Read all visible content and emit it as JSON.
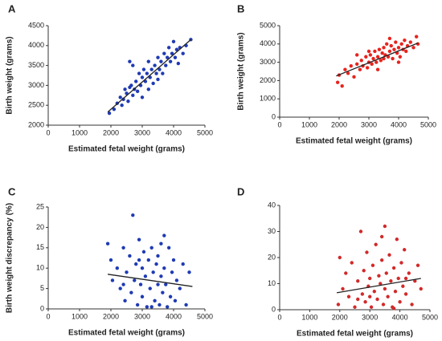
{
  "chart_data": [
    {
      "type": "scatter",
      "label": "A",
      "xlabel": "Estimated fetal weight (grams)",
      "ylabel": "Birth weight (grams)",
      "color": "#1f3bb3",
      "xlim": [
        0,
        5000
      ],
      "xticks": [
        0,
        1000,
        2000,
        3000,
        4000,
        5000
      ],
      "ylim": [
        2000,
        4500
      ],
      "yticks": [
        2000,
        2500,
        3000,
        3500,
        4000,
        4500
      ],
      "x": [
        1950,
        2100,
        2200,
        2300,
        2350,
        2400,
        2450,
        2500,
        2550,
        2600,
        2650,
        2700,
        2700,
        2750,
        2800,
        2850,
        2900,
        2950,
        3000,
        3000,
        3050,
        3100,
        3150,
        3200,
        3200,
        3250,
        3300,
        3350,
        3400,
        3450,
        3500,
        3500,
        3550,
        3600,
        3650,
        3700,
        3750,
        3800,
        3850,
        3900,
        3950,
        4000,
        4050,
        4100,
        4150,
        4200,
        4300,
        4400,
        4550,
        2600
      ],
      "y": [
        2300,
        2400,
        2550,
        2700,
        2500,
        2650,
        2900,
        2800,
        2600,
        2950,
        3000,
        2750,
        3500,
        2900,
        3100,
        2850,
        3300,
        3000,
        3200,
        2700,
        3400,
        3100,
        3300,
        2900,
        3600,
        3200,
        3400,
        3050,
        3500,
        3300,
        3700,
        3150,
        3400,
        3600,
        3300,
        3800,
        3500,
        3700,
        3950,
        3600,
        3800,
        4100,
        3700,
        3900,
        3550,
        3950,
        3800,
        4000,
        4150,
        3600
      ],
      "trend": {
        "x": [
          1900,
          4550
        ],
        "y": [
          2330,
          4150
        ]
      }
    },
    {
      "type": "scatter",
      "label": "B",
      "xlabel": "Estimated fetal weight (grams)",
      "ylabel": "Birth weight (grams)",
      "color": "#e8231e",
      "xlim": [
        0,
        5000
      ],
      "xticks": [
        0,
        1000,
        2000,
        3000,
        4000,
        5000
      ],
      "ylim": [
        0,
        5000
      ],
      "yticks": [
        0,
        1000,
        2000,
        3000,
        4000,
        5000
      ],
      "x": [
        1950,
        2000,
        2100,
        2200,
        2300,
        2400,
        2500,
        2600,
        2700,
        2750,
        2800,
        2900,
        2950,
        3000,
        3050,
        3100,
        3150,
        3200,
        3250,
        3300,
        3350,
        3400,
        3450,
        3500,
        3500,
        3550,
        3600,
        3650,
        3700,
        3750,
        3800,
        3850,
        3900,
        3950,
        4000,
        4050,
        4100,
        4150,
        4200,
        4250,
        4300,
        4400,
        4500,
        4600,
        4650,
        3300,
        2600,
        3700,
        3000,
        4000
      ],
      "y": [
        1900,
        2300,
        1700,
        2600,
        2400,
        2800,
        2200,
        2900,
        2600,
        3100,
        2800,
        3300,
        2700,
        3000,
        3400,
        2900,
        3200,
        3600,
        3000,
        3300,
        3700,
        3100,
        3500,
        3800,
        3200,
        3400,
        4000,
        3300,
        3600,
        3900,
        3200,
        3700,
        4100,
        3500,
        3800,
        3300,
        4000,
        3700,
        4200,
        3600,
        3900,
        4100,
        3800,
        4400,
        4000,
        2600,
        3400,
        4300,
        3600,
        3000
      ],
      "trend": {
        "x": [
          1900,
          4650
        ],
        "y": [
          2250,
          4050
        ]
      }
    },
    {
      "type": "scatter",
      "label": "C",
      "xlabel": "Estimated fetal weight (grams)",
      "ylabel": "Birth weight discrepancy (%)",
      "color": "#1f3bb3",
      "xlim": [
        0,
        5000
      ],
      "xticks": [
        0,
        1000,
        2000,
        3000,
        4000,
        5000
      ],
      "ylim": [
        0,
        25
      ],
      "yticks": [
        0,
        5,
        10,
        15,
        20,
        25
      ],
      "x": [
        1900,
        2000,
        2050,
        2200,
        2300,
        2400,
        2450,
        2500,
        2600,
        2650,
        2700,
        2750,
        2800,
        2850,
        2900,
        2950,
        3000,
        3000,
        3050,
        3100,
        3150,
        3200,
        3250,
        3300,
        3350,
        3400,
        3450,
        3500,
        3500,
        3550,
        3600,
        3650,
        3700,
        3700,
        3750,
        3800,
        3850,
        3900,
        3950,
        4000,
        4050,
        4100,
        4200,
        4300,
        4400,
        4500,
        2400,
        3300,
        2900,
        3600
      ],
      "y": [
        16,
        12,
        7,
        10,
        5,
        15,
        2,
        9,
        13,
        4,
        23,
        7,
        11,
        1,
        17,
        6,
        10,
        3,
        14,
        8,
        0.5,
        12,
        5,
        15,
        9,
        2,
        11,
        6,
        13,
        1,
        8,
        4,
        18,
        10,
        6,
        0.5,
        15,
        3,
        9,
        12,
        2,
        7,
        5,
        11,
        1,
        9,
        6,
        0.5,
        12,
        16
      ],
      "trend": {
        "x": [
          1900,
          4600
        ],
        "y": [
          8.5,
          5.5
        ]
      }
    },
    {
      "type": "scatter",
      "label": "D",
      "xlabel": "Estimated fetal weight (grams)",
      "color": "#d12a2a",
      "xlim": [
        0,
        5000
      ],
      "xticks": [
        0,
        1000,
        2000,
        3000,
        4000,
        5000
      ],
      "ylim": [
        0,
        40
      ],
      "yticks": [
        0,
        10,
        20,
        30,
        40
      ],
      "x": [
        1950,
        2000,
        2100,
        2200,
        2300,
        2400,
        2500,
        2600,
        2700,
        2750,
        2800,
        2850,
        2900,
        2950,
        3000,
        3050,
        3100,
        3150,
        3200,
        3250,
        3300,
        3350,
        3400,
        3450,
        3500,
        3500,
        3550,
        3600,
        3650,
        3700,
        3750,
        3800,
        3850,
        3900,
        3950,
        4000,
        4050,
        4100,
        4150,
        4200,
        4300,
        4400,
        4500,
        4600,
        4700,
        3000,
        3400,
        3800,
        2600,
        4200
      ],
      "y": [
        2,
        20,
        8,
        14,
        5,
        18,
        1,
        11,
        30,
        6,
        15,
        3,
        22,
        9,
        12,
        1,
        17,
        7,
        25,
        4,
        13,
        10,
        19,
        2,
        32,
        8,
        14,
        5,
        21,
        11,
        1,
        16,
        7,
        27,
        12,
        3,
        18,
        9,
        23,
        6,
        14,
        2,
        11,
        17,
        8,
        5,
        28,
        0.5,
        4,
        12
      ],
      "trend": {
        "x": [
          1900,
          4700
        ],
        "y": [
          6.5,
          12
        ]
      }
    }
  ]
}
